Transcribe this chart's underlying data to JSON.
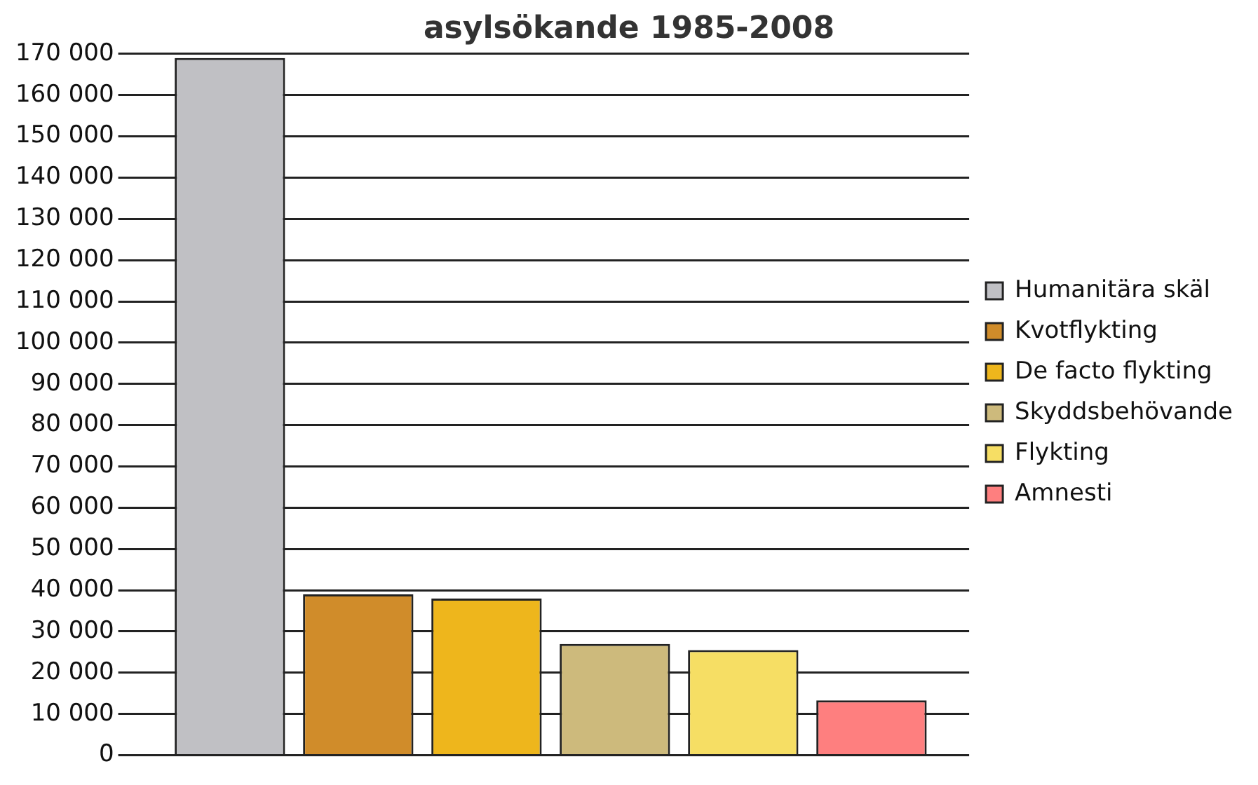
{
  "chart_data": {
    "type": "bar",
    "title": "asylsökande 1985-2008",
    "categories": [
      null
    ],
    "series": [
      {
        "name": "Humanitära skäl",
        "color": "#c0c0c4",
        "values": [
          169000
        ]
      },
      {
        "name": "Kvotflykting",
        "color": "#d08c2a",
        "values": [
          39000
        ]
      },
      {
        "name": "De facto flykting",
        "color": "#eeb61c",
        "values": [
          38000
        ]
      },
      {
        "name": "Skyddsbehövande",
        "color": "#cdba7c",
        "values": [
          27000
        ]
      },
      {
        "name": "Flykting",
        "color": "#f6de64",
        "values": [
          25500
        ]
      },
      {
        "name": "Amnesti",
        "color": "#fe7f7f",
        "values": [
          13300
        ]
      }
    ],
    "ylim": [
      0,
      170000
    ],
    "yticks": [
      0,
      10000,
      20000,
      30000,
      40000,
      50000,
      60000,
      70000,
      80000,
      90000,
      100000,
      110000,
      120000,
      130000,
      140000,
      150000,
      160000,
      170000
    ],
    "grid": "y",
    "legend": "right",
    "tick_labels": "y"
  }
}
